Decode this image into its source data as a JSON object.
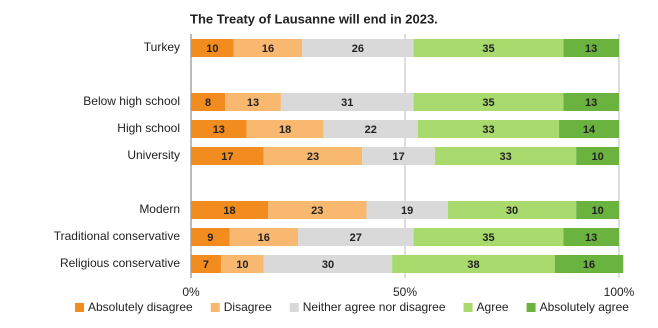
{
  "chart_data": {
    "type": "stacked_barh",
    "title": "The Treaty of Lausanne will end in 2023.",
    "categories": [
      "Turkey",
      null,
      "Below high school",
      "High school",
      "University",
      null,
      "Modern",
      "Traditional conservative",
      "Religious conservative"
    ],
    "series": [
      {
        "name": "Absolutely disagree",
        "color": "#f28c1e",
        "values": [
          10,
          null,
          8,
          13,
          17,
          null,
          18,
          9,
          7
        ]
      },
      {
        "name": "Disagree",
        "color": "#f9b870",
        "values": [
          16,
          null,
          13,
          18,
          23,
          null,
          23,
          16,
          10
        ]
      },
      {
        "name": "Neither agree nor disagree",
        "color": "#d9d9d9",
        "values": [
          26,
          null,
          31,
          22,
          17,
          null,
          19,
          27,
          30
        ]
      },
      {
        "name": "Agree",
        "color": "#a8da6e",
        "values": [
          35,
          null,
          35,
          33,
          33,
          null,
          30,
          35,
          38
        ]
      },
      {
        "name": "Absolutely agree",
        "color": "#6bb33f",
        "values": [
          13,
          null,
          13,
          14,
          10,
          null,
          10,
          13,
          16
        ]
      }
    ],
    "xlim": [
      0,
      100
    ],
    "xticks": [
      {
        "value": 0,
        "label": "0%"
      },
      {
        "value": 50,
        "label": "50%"
      },
      {
        "value": 100,
        "label": "100%"
      }
    ],
    "grid": true,
    "legend": "bottom"
  }
}
